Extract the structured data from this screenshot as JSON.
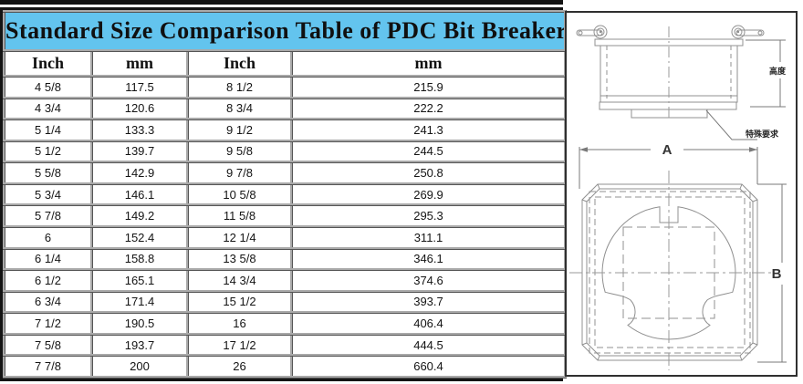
{
  "title": "Standard Size Comparison Table of PDC Bit Breaker",
  "table": {
    "headers": [
      "Inch",
      "mm",
      "Inch",
      "mm"
    ],
    "rows": [
      [
        "4 5/8",
        "117.5",
        "8 1/2",
        "215.9"
      ],
      [
        "4 3/4",
        "120.6",
        "8 3/4",
        "222.2"
      ],
      [
        "5 1/4",
        "133.3",
        "9 1/2",
        "241.3"
      ],
      [
        "5 1/2",
        "139.7",
        "9 5/8",
        "244.5"
      ],
      [
        "5 5/8",
        "142.9",
        "9 7/8",
        "250.8"
      ],
      [
        "5 3/4",
        "146.1",
        "10 5/8",
        "269.9"
      ],
      [
        "5 7/8",
        "149.2",
        "11 5/8",
        "295.3"
      ],
      [
        "6",
        "152.4",
        "12 1/4",
        "311.1"
      ],
      [
        "6 1/4",
        "158.8",
        "13 5/8",
        "346.1"
      ],
      [
        "6 1/2",
        "165.1",
        "14 3/4",
        "374.6"
      ],
      [
        "6 3/4",
        "171.4",
        "15 1/2",
        "393.7"
      ],
      [
        "7 1/2",
        "190.5",
        "16",
        "406.4"
      ],
      [
        "7 5/8",
        "193.7",
        "17 1/2",
        "444.5"
      ],
      [
        "7 7/8",
        "200",
        "26",
        "660.4"
      ]
    ]
  },
  "diagram": {
    "labels": {
      "height_cn": "高度",
      "special_cn": "特殊要求",
      "dim_a": "A",
      "dim_b": "B"
    }
  },
  "colors": {
    "title_bg": "#63c4ee",
    "outer_border": "#141414",
    "grid_line": "#a9a9a9",
    "drawing_line": "#909090"
  }
}
